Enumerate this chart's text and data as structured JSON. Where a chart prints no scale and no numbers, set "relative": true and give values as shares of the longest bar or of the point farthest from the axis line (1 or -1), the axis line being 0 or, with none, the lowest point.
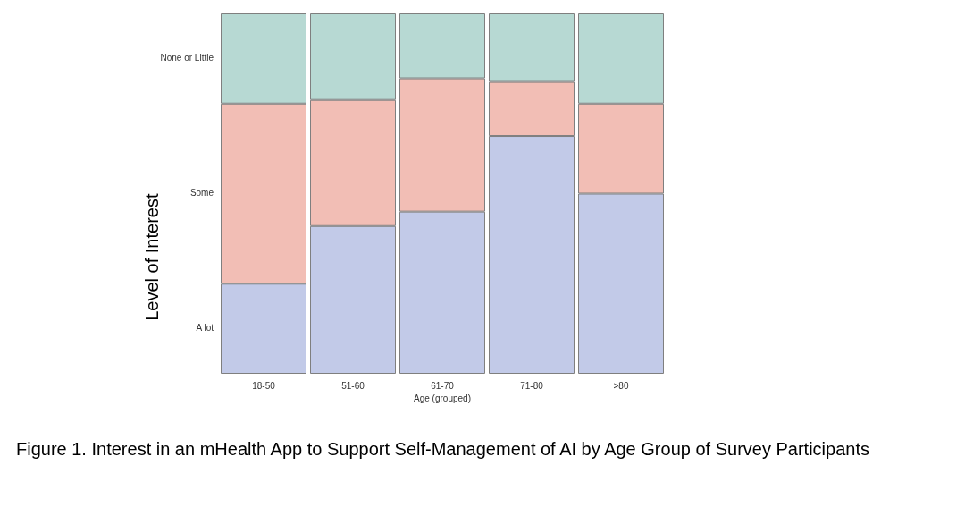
{
  "chart_data": {
    "type": "bar",
    "stacked": true,
    "relative": true,
    "categories": [
      "18-50",
      "51-60",
      "61-70",
      "71-80",
      ">80"
    ],
    "xlabel": "Age (grouped)",
    "ylabel": "Level of Interest",
    "series": [
      {
        "name": "A lot",
        "color": "#c2cae8",
        "values": [
          0.25,
          0.41,
          0.45,
          0.66,
          0.5
        ]
      },
      {
        "name": "Some",
        "color": "#f2beb5",
        "values": [
          0.5,
          0.35,
          0.37,
          0.15,
          0.25
        ]
      },
      {
        "name": "None or Little",
        "color": "#b7d9d3",
        "values": [
          0.25,
          0.24,
          0.18,
          0.19,
          0.25
        ]
      }
    ],
    "annotations": [
      "Figure 1. Interest in an mHealth App to Support Self-Management of AI by Age Group of Survey Participants"
    ]
  }
}
